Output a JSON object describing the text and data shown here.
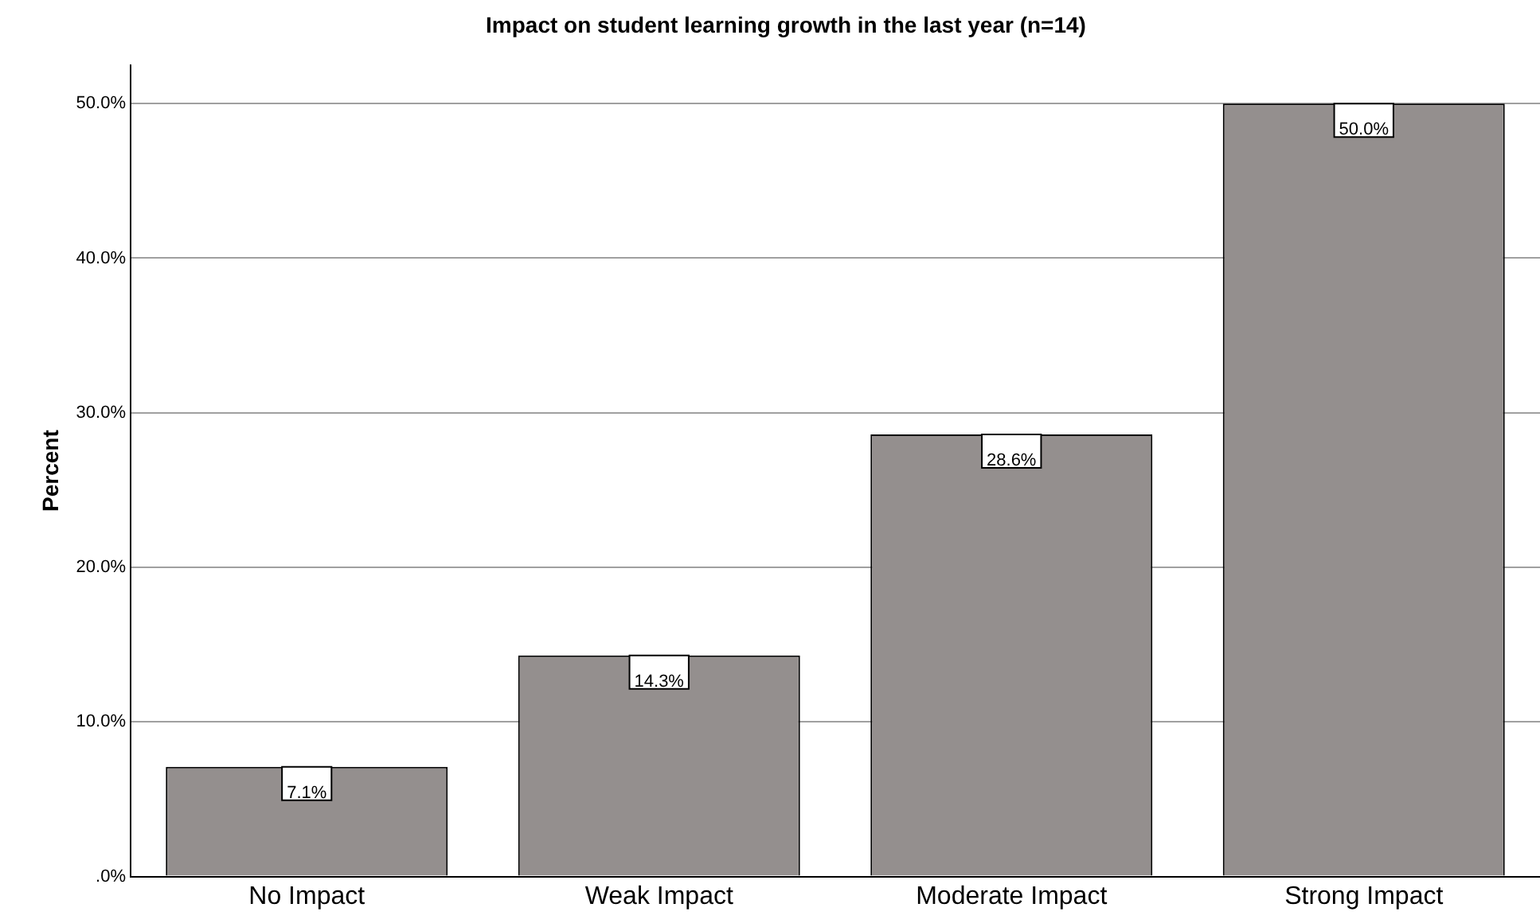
{
  "chart_data": {
    "type": "bar",
    "title": "Impact on student learning growth in the last year (n=14)",
    "ylabel": "Percent",
    "categories": [
      "No Impact",
      "Weak Impact",
      "Moderate Impact",
      "Strong Impact"
    ],
    "values": [
      7.1,
      14.3,
      28.6,
      50.0
    ],
    "color": "#948f8e",
    "value_labels": [
      "7.1%",
      "14.3%",
      "28.6%",
      "50.0%"
    ],
    "ylim": [
      0,
      52.5
    ],
    "yticks": [
      {
        "value": 0,
        "label": ".0%"
      },
      {
        "value": 10,
        "label": "10.0%"
      },
      {
        "value": 20,
        "label": "20.0%"
      },
      {
        "value": 30,
        "label": "30.0%"
      },
      {
        "value": 40,
        "label": "40.0%"
      },
      {
        "value": 50,
        "label": "50.0%"
      }
    ],
    "grid": "y",
    "legend": false
  }
}
